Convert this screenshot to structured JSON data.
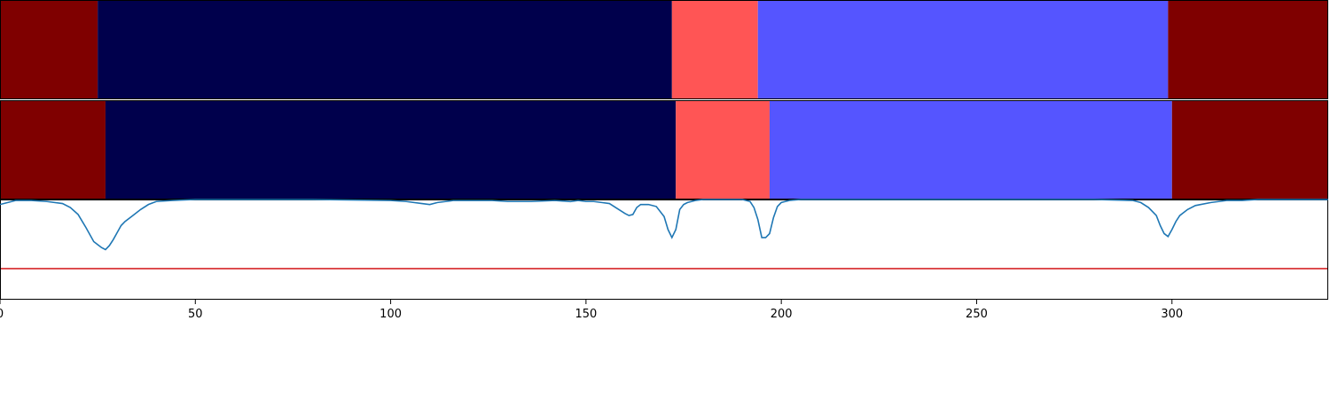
{
  "chart_data": {
    "type": "segmentation-timeline",
    "xlim": [
      0,
      340
    ],
    "xticks": [
      0,
      50,
      100,
      150,
      200,
      250,
      300
    ],
    "grid": false,
    "legend": "none",
    "panels": [
      {
        "name": "",
        "kind": "segments",
        "segments": [
          {
            "start": 0,
            "end": 25,
            "color": "#7f0000"
          },
          {
            "start": 25,
            "end": 172,
            "color": "#00004c"
          },
          {
            "start": 172,
            "end": 194,
            "color": "#ff5555"
          },
          {
            "start": 194,
            "end": 299,
            "color": "#5555ff"
          },
          {
            "start": 299,
            "end": 340,
            "color": "#7f0000"
          }
        ]
      },
      {
        "name": "",
        "kind": "segments",
        "segments": [
          {
            "start": 0,
            "end": 27,
            "color": "#7f0000"
          },
          {
            "start": 27,
            "end": 173,
            "color": "#00004c"
          },
          {
            "start": 173,
            "end": 197,
            "color": "#ff5555"
          },
          {
            "start": 197,
            "end": 300,
            "color": "#5555ff"
          },
          {
            "start": 300,
            "end": 340,
            "color": "#7f0000"
          }
        ]
      },
      {
        "name": "",
        "kind": "line",
        "ylim": [
          0,
          1
        ],
        "threshold": {
          "value": 0.31,
          "color": "#d62728"
        },
        "series_color": "#1f77b4",
        "x": [
          0,
          2,
          4,
          8,
          12,
          16,
          18,
          20,
          22,
          24,
          25,
          26,
          27,
          28,
          29,
          30,
          31,
          32,
          34,
          36,
          38,
          40,
          44,
          50,
          60,
          80,
          100,
          104,
          108,
          110,
          112,
          116,
          120,
          126,
          130,
          136,
          142,
          146,
          148,
          150,
          152,
          154,
          156,
          158,
          160,
          161,
          162,
          163,
          164,
          166,
          168,
          170,
          171,
          172,
          173,
          174,
          175,
          176,
          178,
          180,
          185,
          190,
          192,
          193,
          194,
          195,
          196,
          197,
          198,
          199,
          200,
          202,
          205,
          210,
          220,
          240,
          260,
          280,
          290,
          292,
          294,
          296,
          297,
          298,
          299,
          300,
          301,
          302,
          304,
          306,
          310,
          314,
          318,
          322,
          330,
          340
        ],
        "y": [
          0.95,
          0.97,
          0.99,
          0.99,
          0.98,
          0.96,
          0.92,
          0.85,
          0.72,
          0.58,
          0.55,
          0.52,
          0.5,
          0.54,
          0.6,
          0.67,
          0.74,
          0.78,
          0.84,
          0.9,
          0.95,
          0.98,
          0.99,
          1.0,
          1.0,
          1.0,
          0.99,
          0.98,
          0.96,
          0.95,
          0.97,
          0.99,
          0.99,
          0.99,
          0.98,
          0.98,
          0.99,
          0.98,
          0.99,
          0.98,
          0.98,
          0.97,
          0.96,
          0.91,
          0.86,
          0.84,
          0.85,
          0.92,
          0.95,
          0.95,
          0.93,
          0.83,
          0.7,
          0.62,
          0.7,
          0.9,
          0.95,
          0.97,
          0.99,
          1.0,
          1.0,
          1.0,
          0.98,
          0.92,
          0.8,
          0.62,
          0.62,
          0.66,
          0.82,
          0.93,
          0.97,
          0.99,
          1.0,
          1.0,
          1.0,
          1.0,
          1.0,
          1.0,
          0.99,
          0.97,
          0.92,
          0.84,
          0.74,
          0.66,
          0.63,
          0.7,
          0.78,
          0.84,
          0.9,
          0.94,
          0.97,
          0.99,
          0.99,
          1.0,
          1.0,
          1.0
        ]
      }
    ]
  }
}
